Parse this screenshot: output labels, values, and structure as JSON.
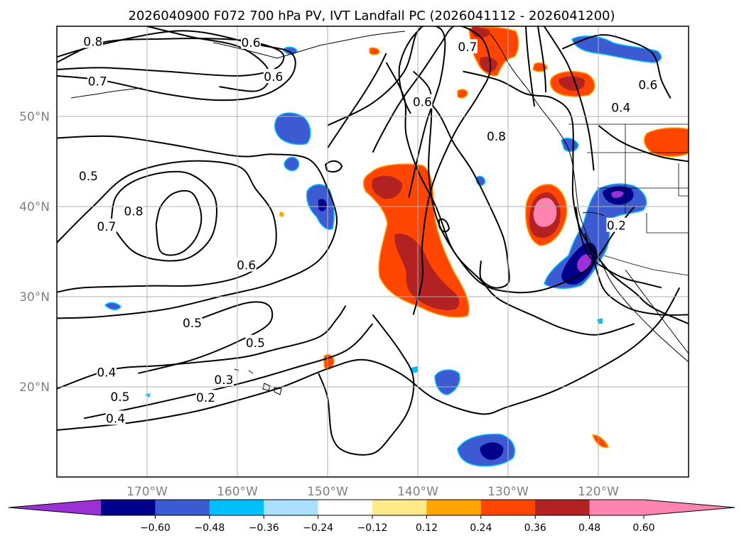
{
  "title": "2026040900 F072 700 hPa PV, IVT Landfall PC (2026041112 - 2026041200)",
  "map": {
    "lon_range": [
      -180,
      -110
    ],
    "lat_range": [
      10,
      60
    ],
    "grid": true,
    "lon_ticks": [
      {
        "value": -170,
        "label": "170°W"
      },
      {
        "value": -160,
        "label": "160°W"
      },
      {
        "value": -150,
        "label": "150°W"
      },
      {
        "value": -140,
        "label": "140°W"
      },
      {
        "value": -130,
        "label": "130°W"
      },
      {
        "value": -120,
        "label": "120°W"
      }
    ],
    "lat_ticks": [
      {
        "value": 50,
        "label": "50°N"
      },
      {
        "value": 40,
        "label": "40°N"
      },
      {
        "value": 30,
        "label": "30°N"
      },
      {
        "value": 20,
        "label": "20°N"
      }
    ],
    "contour_labels": [
      {
        "text": "0.8",
        "lon": -176,
        "lat": 58.3
      },
      {
        "text": "0.7",
        "lon": -175.5,
        "lat": 53.9
      },
      {
        "text": "0.6",
        "lon": -158.5,
        "lat": 58.2
      },
      {
        "text": "0.6",
        "lon": -156,
        "lat": 54.4
      },
      {
        "text": "0.5",
        "lon": -176.5,
        "lat": 43.4
      },
      {
        "text": "0.7",
        "lon": -174.5,
        "lat": 37.8
      },
      {
        "text": "0.8",
        "lon": -171.5,
        "lat": 39.5
      },
      {
        "text": "0.6",
        "lon": -159,
        "lat": 33.5
      },
      {
        "text": "0.5",
        "lon": -165,
        "lat": 27.1
      },
      {
        "text": "0.5",
        "lon": -158,
        "lat": 24.9
      },
      {
        "text": "0.4",
        "lon": -174.5,
        "lat": 21.6
      },
      {
        "text": "0.5",
        "lon": -173,
        "lat": 18.9
      },
      {
        "text": "0.4",
        "lon": -173.5,
        "lat": 16.5
      },
      {
        "text": "0.3",
        "lon": -161.5,
        "lat": 20.8
      },
      {
        "text": "0.2",
        "lon": -163.5,
        "lat": 18.8
      },
      {
        "text": "0.6",
        "lon": -139.5,
        "lat": 51.6
      },
      {
        "text": "0.8",
        "lon": -131.3,
        "lat": 47.8
      },
      {
        "text": "0.7",
        "lon": -134.5,
        "lat": 57.7
      },
      {
        "text": "0.6",
        "lon": -114.5,
        "lat": 53.5
      },
      {
        "text": "0.4",
        "lon": -117.5,
        "lat": 51
      },
      {
        "text": "0.2",
        "lon": -118,
        "lat": 37.9
      }
    ],
    "pv_contours": [
      {
        "level": 0.8,
        "lon": [
          -180,
          -175,
          -168,
          -162,
          -158,
          -155,
          -155.8,
          -160,
          -168,
          -175,
          -180
        ],
        "lat": [
          56,
          58.2,
          58.6,
          58.6,
          58.2,
          57,
          55.3,
          54.5,
          55,
          55.4,
          55.2
        ]
      },
      {
        "level": 0.7,
        "lon": [
          -180,
          -175,
          -168,
          -162,
          -157,
          -154,
          -154,
          -158,
          -166,
          -175,
          -180
        ],
        "lat": [
          54.5,
          54,
          52.5,
          51.8,
          52.4,
          54.5,
          57,
          58,
          59.5,
          58,
          56.6
        ]
      },
      {
        "level": 0.6,
        "lon": [
          -170,
          -165,
          -160,
          -157,
          -156.5,
          -158,
          -162
        ],
        "lat": [
          60,
          58.8,
          57.8,
          55.8,
          54,
          52.8,
          53.3
        ]
      },
      {
        "level": 0.8,
        "lon": [
          -169,
          -168.5,
          -167,
          -165,
          -164,
          -164.6,
          -166.4,
          -168.5,
          -169
        ],
        "lat": [
          38,
          40,
          41.5,
          41.5,
          39,
          36.5,
          34.8,
          35,
          38
        ]
      },
      {
        "level": 0.7,
        "lon": [
          -174,
          -173.5,
          -171.5,
          -168,
          -165,
          -162.5,
          -162.7,
          -165,
          -168,
          -171.5,
          -174
        ],
        "lat": [
          38,
          41,
          42.8,
          43.8,
          43.5,
          41,
          37,
          34.5,
          34,
          35,
          38
        ]
      },
      {
        "level": 0.6,
        "lon": [
          -180,
          -176,
          -172,
          -166,
          -160,
          -158,
          -156,
          -156,
          -159,
          -164,
          -170,
          -177,
          -180
        ],
        "lat": [
          36,
          40,
          43.5,
          45,
          44.5,
          42,
          39,
          35,
          32.5,
          31.3,
          31.2,
          31,
          30.5
        ]
      },
      {
        "level": 0.5,
        "lon": [
          -180,
          -174,
          -168,
          -160,
          -156,
          -152,
          -150,
          -149,
          -151,
          -156,
          -162,
          -168,
          -175,
          -180
        ],
        "lat": [
          47.6,
          47.8,
          47,
          45.6,
          45.8,
          45.2,
          42,
          38,
          34,
          31.5,
          30,
          28.6,
          27.8,
          27.6
        ]
      },
      {
        "level": 0.5,
        "lon": [
          -150,
          -145,
          -141.5,
          -140,
          -138,
          -137,
          -137.5,
          -139,
          -140,
          -141
        ],
        "lat": [
          49,
          51.5,
          55,
          59.5,
          60,
          58.5,
          54,
          49.5,
          45.5,
          41
        ]
      },
      {
        "level": 0.5,
        "lon": [
          -171,
          -165,
          -160,
          -156.5,
          -156.5,
          -159,
          -164
        ],
        "lat": [
          21.5,
          23,
          25,
          27,
          29,
          29.3,
          27.6
        ]
      },
      {
        "level": 0.4,
        "lon": [
          -180,
          -174,
          -168,
          -160,
          -156,
          -151,
          -149,
          -148
        ],
        "lat": [
          19.8,
          21.9,
          22.4,
          23.2,
          24.1,
          25.5,
          27.5,
          29
        ]
      },
      {
        "level": 0.3,
        "lon": [
          -177,
          -169,
          -160,
          -154,
          -148,
          -145
        ],
        "lat": [
          16.5,
          18.2,
          20.3,
          22,
          24,
          27
        ]
      },
      {
        "level": 0.2,
        "lon": [
          -180,
          -172,
          -165,
          -160,
          -155,
          -150,
          -146,
          -142,
          -138,
          -133,
          -130,
          -125,
          -120,
          -116,
          -113,
          -111
        ],
        "lat": [
          15.2,
          16,
          17.2,
          18.5,
          20,
          22,
          23,
          21.5,
          18.6,
          17,
          17.8,
          19.5,
          22,
          24.5,
          27.5,
          31
        ]
      },
      {
        "level": 0.4,
        "lon": [
          -145,
          -142,
          -140.5,
          -141,
          -143,
          -145,
          -148,
          -149.5,
          -150,
          -151
        ],
        "lat": [
          28,
          24,
          21,
          17.5,
          14.5,
          12.6,
          12.8,
          14.5,
          18.8,
          21.5
        ]
      },
      {
        "level": 0.6,
        "lon": [
          -143.5,
          -141.5,
          -141.3,
          -140,
          -138,
          -136,
          -133,
          -131,
          -127,
          -124,
          -121,
          -119,
          -116
        ],
        "lat": [
          56,
          52,
          48,
          44,
          40,
          35,
          31.8,
          29.7,
          27.8,
          26.5,
          25.8,
          26,
          27
        ]
      },
      {
        "level": 0.7,
        "lon": [
          -140.5,
          -138.7,
          -138.5,
          -138.8,
          -138,
          -136,
          -133,
          -129.5,
          -126,
          -122,
          -120,
          -118,
          -116
        ],
        "lat": [
          55,
          53,
          50,
          44,
          39,
          35,
          31.5,
          30.5,
          30.8,
          32.5,
          34.5,
          37.5,
          40
        ]
      },
      {
        "level": 0.8,
        "lon": [
          -139,
          -137.5,
          -136,
          -134,
          -132,
          -130.5,
          -130,
          -130,
          -131.5,
          -133,
          -133
        ],
        "lat": [
          52,
          50,
          47,
          44,
          40,
          36.5,
          33.5,
          31.5,
          31,
          32,
          34
        ]
      },
      {
        "level": 0.6,
        "lon": [
          -135,
          -131,
          -128,
          -125,
          -123,
          -122.8,
          -122.8,
          -122,
          -120.5,
          -118.5,
          -116,
          -114,
          -110
        ],
        "lat": [
          55,
          54,
          52.5,
          52,
          50,
          45,
          41,
          37.5,
          35,
          32.5,
          30.5,
          28.8,
          27
        ]
      },
      {
        "level": 0.7,
        "lon": [
          -121.5,
          -120.5,
          -119.5,
          -118,
          -116,
          -113,
          -110
        ],
        "lat": [
          37,
          34,
          31,
          29.5,
          28.5,
          28,
          28
        ]
      },
      {
        "level": 0.6,
        "lon": [
          -124,
          -120,
          -117,
          -114,
          -113,
          -112
        ],
        "lat": [
          57.5,
          59,
          58.5,
          57,
          54,
          52
        ]
      },
      {
        "level": 0.5,
        "lon": [
          -126,
          -123.5,
          -122,
          -121,
          -120.5
        ],
        "lat": [
          60,
          56,
          52,
          48,
          44
        ]
      },
      {
        "level": 0.4,
        "lon": [
          -120,
          -118,
          -116,
          -113,
          -110
        ],
        "lat": [
          49,
          47.5,
          46.5,
          45.5,
          45
        ]
      },
      {
        "level": 0.6,
        "lon": [
          -145,
          -144,
          -142,
          -139.5,
          -137.5,
          -136,
          -134,
          -132.5,
          -132,
          -133.5,
          -136,
          -138.5,
          -139.5,
          -139.5,
          -140.5
        ],
        "lat": [
          46,
          48,
          51.5,
          55,
          58,
          60,
          59.5,
          58,
          55,
          52,
          48,
          42,
          36,
          32,
          28
        ]
      },
      {
        "level": 0.5,
        "lon": [
          -122.5,
          -122,
          -121,
          -119,
          -117,
          -115,
          -113
        ],
        "lat": [
          40,
          37,
          34.5,
          33,
          32,
          31.5,
          31
        ]
      },
      {
        "level": 0.6,
        "lon": [
          -150,
          -148,
          -146,
          -144.5,
          -143.5
        ],
        "lat": [
          46.5,
          49.5,
          52.5,
          55,
          57
        ]
      }
    ],
    "legend": {
      "ticks": [
        "−0.60",
        "−0.48",
        "−0.36",
        "−0.24",
        "−0.12",
        "0.12",
        "0.24",
        "0.36",
        "0.48",
        "0.60"
      ],
      "colors": [
        "#9a30d6",
        "#00008b",
        "#3c5bd2",
        "#00bfff",
        "#aadfff",
        "#ffffff",
        "#ffe98a",
        "#ffa500",
        "#ff4500",
        "#b22222",
        "#ff85b0",
        "#ff85b0"
      ]
    }
  }
}
